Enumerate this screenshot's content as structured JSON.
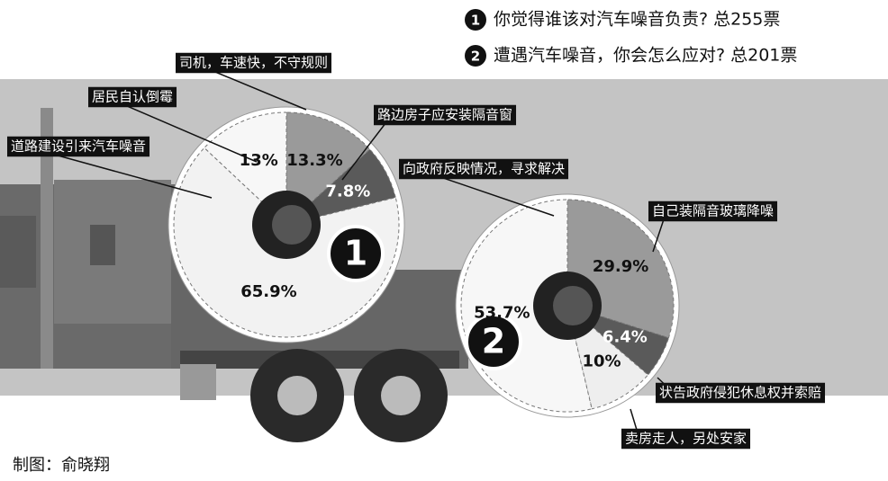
{
  "credit": "制图：俞晓翔",
  "chart_data": [
    {
      "type": "pie",
      "marker": "1",
      "title": "你觉得谁该对汽车噪音负责? 总255票",
      "categories": [
        "司机，车速快，不守规则",
        "路边房子应安装隔音窗",
        "道路建设引来汽车噪音",
        "居民自认倒霉"
      ],
      "values": [
        13.3,
        7.8,
        65.9,
        13
      ],
      "value_labels": [
        "13.3%",
        "7.8%",
        "65.9%",
        "13%"
      ],
      "colors": [
        "#9a9a9a",
        "#5a5a5a",
        "#f2f2f2",
        "#f7f7f7"
      ]
    },
    {
      "type": "pie",
      "marker": "2",
      "title": "遭遇汽车噪音，你会怎么应对? 总201票",
      "categories": [
        "自己装隔音玻璃降噪",
        "状告政府侵犯休息权并索赔",
        "卖房走人，另处安家",
        "向政府反映情况，寻求解决"
      ],
      "values": [
        29.9,
        6.4,
        10,
        53.7
      ],
      "value_labels": [
        "29.9%",
        "6.4%",
        "10%",
        "53.7%"
      ],
      "colors": [
        "#9a9a9a",
        "#5a5a5a",
        "#eeeeee",
        "#f7f7f7"
      ]
    }
  ]
}
